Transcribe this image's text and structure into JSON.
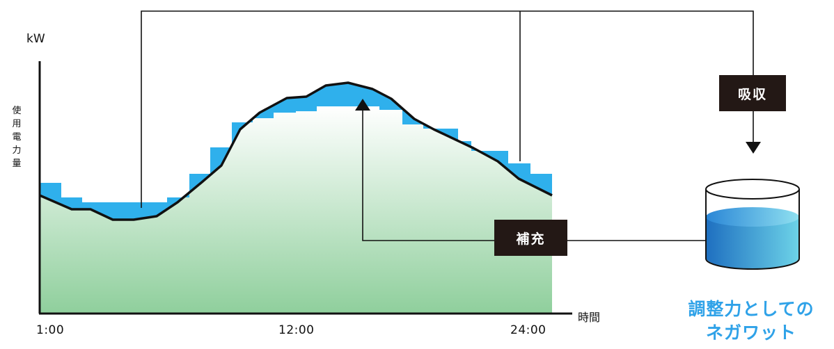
{
  "unit_label": "kW",
  "y_axis_label": "使用電力量",
  "x_axis_label": "時間",
  "time_ticks": [
    "1:00",
    "12:00",
    "24:00"
  ],
  "absorb_label": "吸収",
  "replenish_label": "補充",
  "caption_line1": "調整力としての",
  "caption_line2": "ネガワット",
  "colors": {
    "shift_area": "#2fb0ec",
    "base_gradient_top": "#ffffff",
    "base_gradient_bottom": "#8fcf9c",
    "label_box": "#231815",
    "caption": "#2fa2e8",
    "water_top": "#1e6fc0",
    "water_bottom": "#6dd3e8"
  },
  "icons": [
    "tank-icon",
    "arrow-down-icon",
    "arrow-up-icon"
  ]
}
